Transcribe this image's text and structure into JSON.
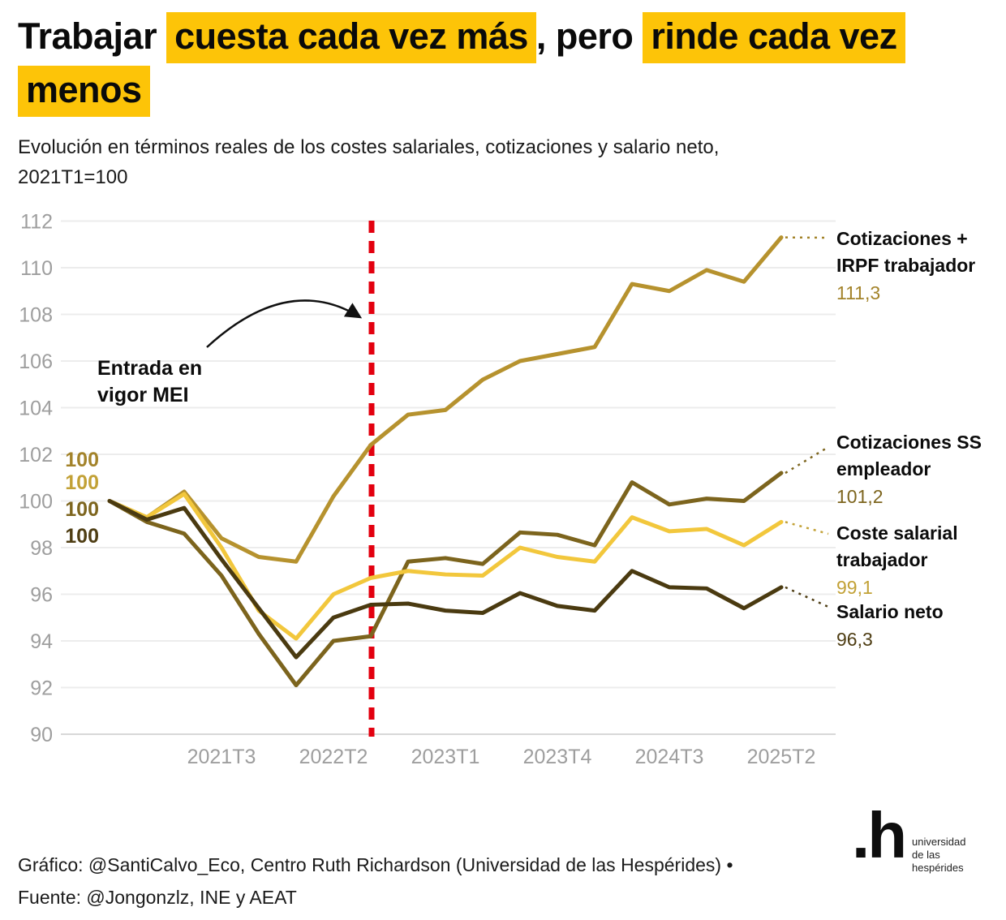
{
  "title": {
    "plain1": "Trabajar ",
    "highlight1": "cuesta cada vez más",
    "plain2": ", pero ",
    "highlight2": "rinde cada vez",
    "highlight3": "menos",
    "highlight_color": "#fdc408"
  },
  "subtitle": {
    "line1": "Evolución en términos reales de los costes salariales, cotizaciones y salario neto,",
    "line2": "2021T1=100"
  },
  "annotation": {
    "line1": "Entrada en",
    "line2": "vigor MEI"
  },
  "footer": {
    "line1": "Gráfico: @SantiCalvo_Eco, Centro Ruth Richardson (Universidad de las Hespérides) •",
    "line2": "Fuente: @Jongonzlz, INE y AEAT"
  },
  "logo": {
    "mark": ".h",
    "line1": "universidad",
    "line2": "de las",
    "line3": "hespérides"
  },
  "chart_data": {
    "type": "line",
    "subtitle": "Evolución en términos reales de los costes salariales, cotizaciones y salario neto, 2021T1=100",
    "n_points": 19,
    "x_tick_labels": [
      "2021T3",
      "2022T2",
      "2023T1",
      "2023T4",
      "2024T3",
      "2025T2"
    ],
    "x_tick_indices": [
      3,
      6,
      9,
      12,
      15,
      18
    ],
    "y_ticks": [
      90,
      92,
      94,
      96,
      98,
      100,
      102,
      104,
      106,
      108,
      110,
      112
    ],
    "ylim": [
      90,
      112
    ],
    "grid": "horizontal",
    "legend_position": "right-of-lines",
    "event_line": {
      "x_index": 7,
      "color": "#e3000f",
      "label": "Entrada en vigor MEI"
    },
    "series": [
      {
        "name": "Cotizaciones + IRPF trabajador",
        "label_lines": [
          "Cotizaciones +",
          "IRPF trabajador"
        ],
        "end_value_label": "111,3",
        "end_value": 111.3,
        "start_label": "100",
        "color": "#b6922e",
        "label_color": "#a3832a",
        "values": [
          100,
          99.3,
          100.4,
          98.4,
          97.6,
          97.4,
          100.2,
          102.4,
          103.7,
          103.9,
          105.2,
          106.0,
          106.3,
          106.6,
          109.3,
          109.0,
          109.9,
          109.4,
          111.3
        ]
      },
      {
        "name": "Cotizaciones SS empleador",
        "label_lines": [
          "Cotizaciones SS",
          "empleador"
        ],
        "end_value_label": "101,2",
        "end_value": 101.2,
        "start_label": "100",
        "color": "#7c641d",
        "label_color": "#7d651e",
        "values": [
          100,
          99.1,
          98.6,
          96.8,
          94.3,
          92.1,
          94.0,
          94.2,
          97.4,
          97.55,
          97.3,
          98.65,
          98.55,
          98.1,
          100.8,
          99.85,
          100.1,
          100.0,
          101.2
        ]
      },
      {
        "name": "Coste salarial trabajador",
        "label_lines": [
          "Coste salarial",
          "trabajador"
        ],
        "end_value_label": "99,1",
        "end_value": 99.1,
        "start_label": "100",
        "color": "#f2c73c",
        "label_color": "#c2a136",
        "values": [
          100,
          99.3,
          100.3,
          98.0,
          95.3,
          94.1,
          96.0,
          96.7,
          97.0,
          96.85,
          96.8,
          98.0,
          97.6,
          97.4,
          99.3,
          98.7,
          98.8,
          98.1,
          99.1
        ]
      },
      {
        "name": "Salario neto",
        "label_lines": [
          "Salario neto"
        ],
        "end_value_label": "96,3",
        "end_value": 96.3,
        "start_label": "100",
        "color": "#4a3a10",
        "label_color": "#4e3d13",
        "values": [
          100,
          99.2,
          99.7,
          97.5,
          95.4,
          93.3,
          95.0,
          95.55,
          95.6,
          95.3,
          95.2,
          96.05,
          95.5,
          95.3,
          97.0,
          96.3,
          96.25,
          95.4,
          96.3
        ]
      }
    ]
  }
}
